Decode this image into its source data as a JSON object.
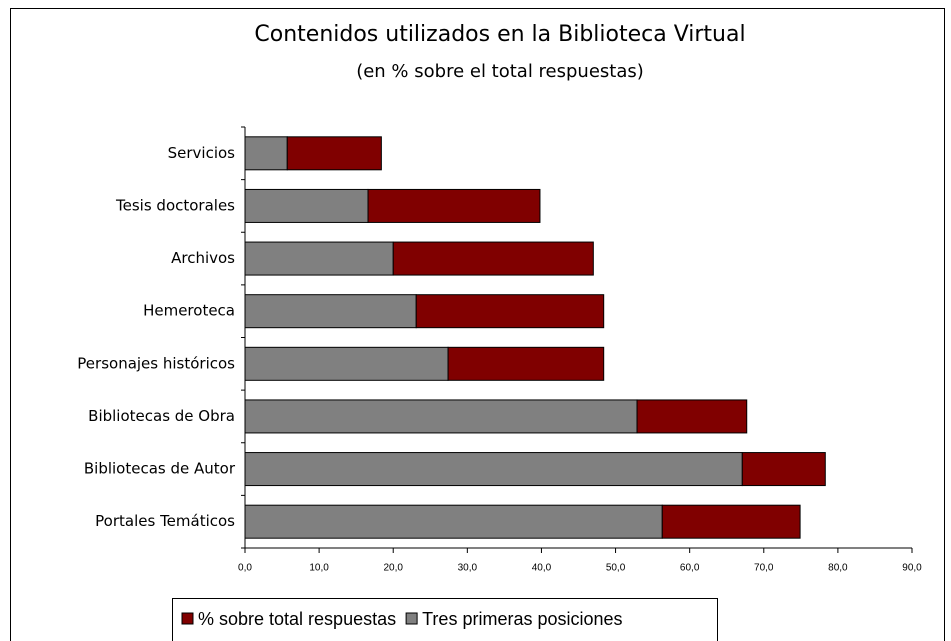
{
  "chart_data": {
    "type": "stacked-barh",
    "title": "Contenidos utilizados en la Biblioteca Virtual",
    "subtitle": "(en % sobre el total respuestas)",
    "categories": [
      "Servicios",
      "Tesis doctorales",
      "Archivos",
      "Hemeroteca",
      "Personajes históricos",
      "Bibliotecas de Obra",
      "Bibliotecas de Autor",
      "Portales Temáticos"
    ],
    "series": [
      {
        "name": "Tres primeras posiciones",
        "color": "#808080",
        "values": [
          5.7,
          16.6,
          20.0,
          23.1,
          27.4,
          52.9,
          67.1,
          56.3
        ]
      },
      {
        "name": "% sobre total respuestas",
        "color": "#800000",
        "values": [
          12.7,
          23.2,
          27.0,
          25.3,
          21.0,
          14.8,
          11.2,
          18.6
        ]
      }
    ],
    "xlim": [
      0,
      90
    ],
    "xticks": [
      {
        "value": 0,
        "label": "0,0"
      },
      {
        "value": 10,
        "label": "10,0"
      },
      {
        "value": 20,
        "label": "20,0"
      },
      {
        "value": 30,
        "label": "30,0"
      },
      {
        "value": 40,
        "label": "40,0"
      },
      {
        "value": 50,
        "label": "50,0"
      },
      {
        "value": 60,
        "label": "60,0"
      },
      {
        "value": 70,
        "label": "70,0"
      },
      {
        "value": 80,
        "label": "80,0"
      },
      {
        "value": 90,
        "label": "90,0"
      }
    ],
    "grid": false,
    "legend": "bottom"
  }
}
